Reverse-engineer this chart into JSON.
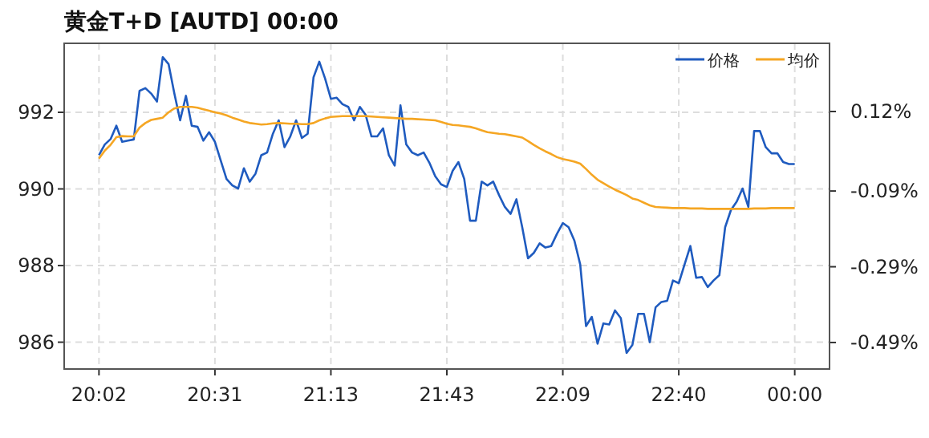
{
  "chart_data": {
    "type": "line",
    "title": "黄金T+D [AUTD]  00:00",
    "categories": [
      "20:02",
      null,
      null,
      null,
      null,
      null,
      null,
      null,
      null,
      null,
      null,
      null,
      null,
      null,
      null,
      null,
      null,
      null,
      null,
      null,
      "20:31",
      null,
      null,
      null,
      null,
      null,
      null,
      null,
      null,
      null,
      null,
      null,
      null,
      null,
      null,
      null,
      null,
      null,
      null,
      null,
      "21:13",
      null,
      null,
      null,
      null,
      null,
      null,
      null,
      null,
      null,
      null,
      null,
      null,
      null,
      null,
      null,
      null,
      null,
      null,
      null,
      "21:43",
      null,
      null,
      null,
      null,
      null,
      null,
      null,
      null,
      null,
      null,
      null,
      null,
      null,
      null,
      null,
      null,
      null,
      null,
      null,
      "22:09",
      null,
      null,
      null,
      null,
      null,
      null,
      null,
      null,
      null,
      null,
      null,
      null,
      null,
      null,
      null,
      null,
      null,
      null,
      null,
      "22:40",
      null,
      null,
      null,
      null,
      null,
      null,
      null,
      null,
      null,
      null,
      null,
      null,
      null,
      null,
      null,
      null,
      null,
      null,
      null,
      "00:00"
    ],
    "ylim": [
      985.3,
      993.8
    ],
    "yticks": [
      986,
      988,
      990,
      992
    ],
    "y2lim": [
      -0.56,
      0.3
    ],
    "y2ticks": [
      {
        "value": 0.12,
        "label": "0.12%"
      },
      {
        "value": -0.09,
        "label": "-0.09%"
      },
      {
        "value": -0.29,
        "label": "-0.29%"
      },
      {
        "value": -0.49,
        "label": "-0.49%"
      }
    ],
    "grid": true,
    "legend": "top right",
    "series": [
      {
        "name": "价格",
        "color": "#1f5bbf",
        "values": [
          990.88,
          991.16,
          991.3,
          991.65,
          991.23,
          991.26,
          991.29,
          992.56,
          992.63,
          992.49,
          992.28,
          993.44,
          993.26,
          992.49,
          991.79,
          992.43,
          991.65,
          991.62,
          991.26,
          991.48,
          991.23,
          990.74,
          990.26,
          990.09,
          990.01,
          990.54,
          990.19,
          990.4,
          990.88,
          990.95,
          991.44,
          991.79,
          991.09,
          991.37,
          991.79,
          991.33,
          991.44,
          992.91,
          993.32,
          992.88,
          992.35,
          992.38,
          992.21,
          992.14,
          991.79,
          992.14,
          991.93,
          991.37,
          991.37,
          991.58,
          990.88,
          990.61,
          992.18,
          991.16,
          990.95,
          990.88,
          990.95,
          990.68,
          990.33,
          990.12,
          990.05,
          990.47,
          990.7,
          990.26,
          989.17,
          989.17,
          990.19,
          990.09,
          990.19,
          989.84,
          989.53,
          989.35,
          989.73,
          989,
          988.19,
          988.33,
          988.58,
          988.47,
          988.51,
          988.83,
          989.11,
          989,
          988.65,
          988.03,
          986.42,
          986.66,
          985.96,
          986.49,
          986.46,
          986.83,
          986.63,
          985.72,
          985.93,
          986.74,
          986.74,
          986,
          986.91,
          987.05,
          987.08,
          987.61,
          987.54,
          988.03,
          988.51,
          987.68,
          987.7,
          987.44,
          987.61,
          987.75,
          989,
          989.45,
          989.67,
          990.01,
          989.53,
          991.51,
          991.51,
          991.09,
          990.93,
          990.93,
          990.7,
          990.65,
          990.65
        ]
      },
      {
        "name": "均价",
        "color": "#f5a623",
        "values": [
          990.79,
          991,
          991.15,
          991.35,
          991.38,
          991.37,
          991.37,
          991.6,
          991.72,
          991.8,
          991.83,
          991.86,
          992,
          992.1,
          992.14,
          992.14,
          992.14,
          992.12,
          992.08,
          992.04,
          992,
          991.97,
          991.92,
          991.86,
          991.81,
          991.76,
          991.72,
          991.7,
          991.68,
          991.69,
          991.71,
          991.72,
          991.71,
          991.7,
          991.7,
          991.69,
          991.69,
          991.72,
          991.79,
          991.84,
          991.88,
          991.89,
          991.9,
          991.9,
          991.9,
          991.9,
          991.9,
          991.89,
          991.88,
          991.87,
          991.86,
          991.85,
          991.84,
          991.83,
          991.83,
          991.82,
          991.81,
          991.8,
          991.79,
          991.75,
          991.7,
          991.67,
          991.66,
          991.64,
          991.62,
          991.58,
          991.53,
          991.48,
          991.46,
          991.44,
          991.43,
          991.4,
          991.37,
          991.34,
          991.25,
          991.15,
          991.06,
          990.98,
          990.91,
          990.83,
          990.78,
          990.75,
          990.71,
          990.66,
          990.52,
          990.37,
          990.24,
          990.15,
          990.06,
          989.98,
          989.91,
          989.84,
          989.75,
          989.71,
          989.64,
          989.57,
          989.53,
          989.52,
          989.51,
          989.5,
          989.5,
          989.5,
          989.49,
          989.49,
          989.49,
          989.48,
          989.48,
          989.48,
          989.48,
          989.48,
          989.48,
          989.48,
          989.48,
          989.49,
          989.49,
          989.49,
          989.5,
          989.5,
          989.5,
          989.5,
          989.5
        ]
      }
    ]
  }
}
